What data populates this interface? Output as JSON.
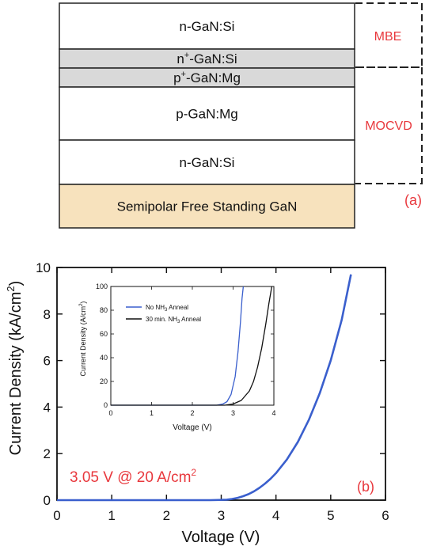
{
  "panel_a": {
    "layers": [
      {
        "name": "n-GaN:Si",
        "fill": "#ffffff"
      },
      {
        "name": "n+-GaN:Si",
        "base": "n",
        "sup": "+",
        "rest": "-GaN:Si",
        "fill": "#d9d9d9"
      },
      {
        "name": "p+-GaN:Mg",
        "base": "p",
        "sup": "+",
        "rest": "-GaN:Mg",
        "fill": "#d9d9d9"
      },
      {
        "name": "p-GaN:Mg",
        "fill": "#ffffff"
      },
      {
        "name": "n-GaN:Si",
        "fill": "#ffffff"
      },
      {
        "name": "Semipolar Free Standing GaN",
        "fill": "#f7e2bd"
      }
    ],
    "growth_labels": {
      "mbe": "MBE",
      "mocvd": "MOCVD"
    },
    "panel_label": "(a)",
    "accent_color": "#e8383d"
  },
  "panel_b": {
    "panel_label": "(b)",
    "annotation": {
      "prefix": "3.05 V @ 20 A/cm",
      "sup": "2"
    },
    "inset_legend": [
      {
        "prefix": "No NH",
        "sub": "3",
        "suffix": " Anneal",
        "color": "#3a5fcd"
      },
      {
        "prefix": "30 min. NH",
        "sub": "3",
        "suffix": " Anneal",
        "color": "#111111"
      }
    ]
  },
  "chart_data": [
    {
      "type": "line",
      "xlabel": "Voltage (V)",
      "ylabel_prefix": "Current Density (kA/cm",
      "ylabel_sup": "2",
      "ylabel_suffix": ")",
      "xlim": [
        0,
        6
      ],
      "ylim": [
        0,
        10
      ],
      "xticks": [
        0,
        1,
        2,
        3,
        4,
        5,
        6
      ],
      "yticks": [
        0,
        2,
        4,
        6,
        8,
        10
      ],
      "series": [
        {
          "color": "#3a5fcd",
          "x": [
            0,
            1,
            2,
            2.8,
            3.0,
            3.1,
            3.2,
            3.3,
            3.4,
            3.5,
            3.6,
            3.7,
            3.8,
            3.9,
            4.0,
            4.2,
            4.4,
            4.6,
            4.8,
            5.0,
            5.2,
            5.37
          ],
          "y": [
            0,
            0,
            0,
            0,
            0.01,
            0.02,
            0.05,
            0.1,
            0.17,
            0.26,
            0.38,
            0.53,
            0.71,
            0.92,
            1.16,
            1.75,
            2.5,
            3.45,
            4.6,
            6.0,
            7.75,
            9.7
          ]
        }
      ]
    },
    {
      "type": "line",
      "xlabel": "Voltage (V)",
      "ylabel_prefix": "Current Density (A/cm",
      "ylabel_sup": "2",
      "ylabel_suffix": ")",
      "xlim": [
        0,
        4
      ],
      "ylim": [
        0,
        100
      ],
      "xticks": [
        0,
        1,
        2,
        3,
        4
      ],
      "yticks": [
        0,
        20,
        40,
        60,
        80,
        100
      ],
      "series": [
        {
          "name": "No NH3 Anneal",
          "color": "#3a5fcd",
          "x": [
            0,
            1,
            2,
            2.6,
            2.75,
            2.85,
            2.95,
            3.05,
            3.12,
            3.18,
            3.22,
            3.25
          ],
          "y": [
            0,
            0,
            0,
            0,
            1,
            3,
            9,
            24,
            45,
            70,
            90,
            100
          ]
        },
        {
          "name": "30 min. NH3 Anneal",
          "color": "#111111",
          "x": [
            0,
            1,
            2,
            2.8,
            3.0,
            3.2,
            3.4,
            3.5,
            3.6,
            3.7,
            3.8,
            3.88,
            3.95
          ],
          "y": [
            0,
            0,
            0,
            0,
            1,
            4,
            12,
            20,
            32,
            48,
            68,
            86,
            100
          ]
        }
      ]
    }
  ]
}
